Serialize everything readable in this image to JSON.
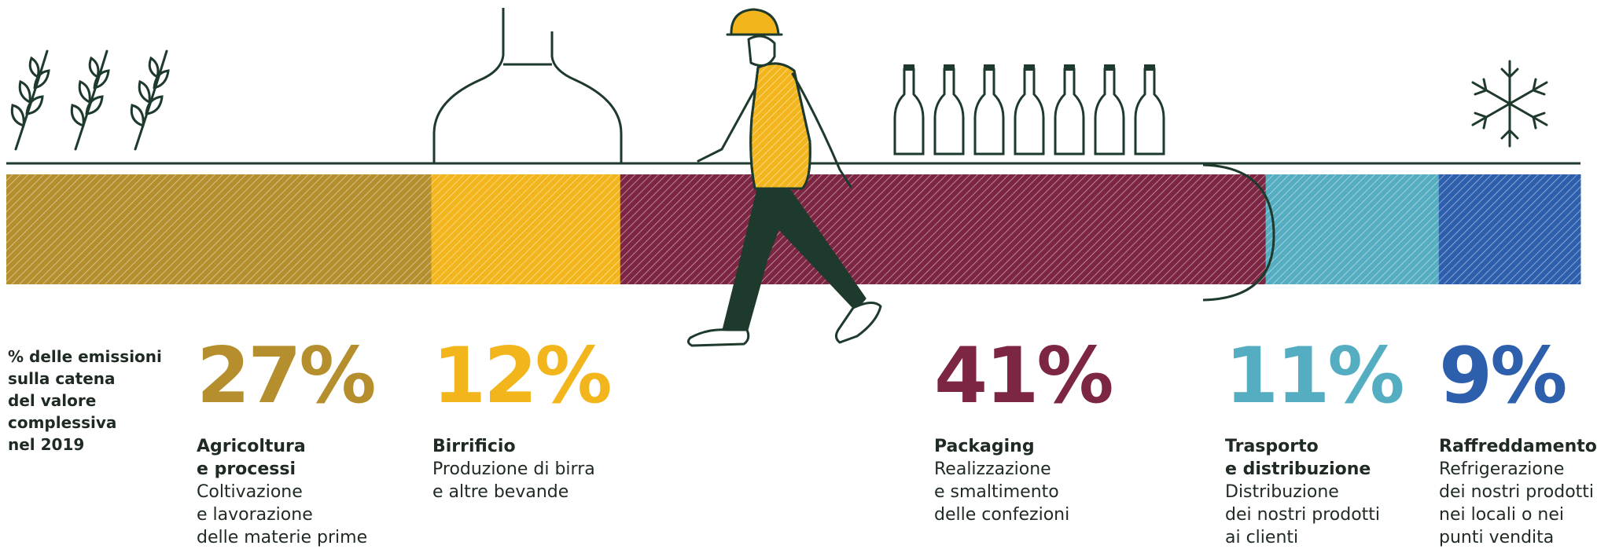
{
  "intro": "% delle emissioni\nsulla catena\ndel valore\ncomplessiva\nnel 2019",
  "colors": {
    "agricoltura": "#b58f2e",
    "birrificio": "#f3b51c",
    "packaging": "#7d2643",
    "trasporto": "#55adc1",
    "raffreddamento": "#2d5fad",
    "line": "#1e3a2c"
  },
  "icons": [
    "wheat-icon",
    "brewing-kettle-icon",
    "worker-icon",
    "bottle-icon",
    "snowflake-icon"
  ],
  "chart_data": {
    "type": "bar",
    "orientation": "horizontal-stacked",
    "unit": "%",
    "categories": [
      "Agricoltura e processi",
      "Birrificio",
      "Packaging",
      "Trasporto e distribuzione",
      "Raffreddamento"
    ],
    "values": [
      27,
      12,
      41,
      11,
      9
    ],
    "labels": [
      "27%",
      "12%",
      "41%",
      "11%",
      "9%"
    ]
  },
  "stats": [
    {
      "pct": "27%",
      "title": "Agricoltura\ne processi",
      "desc": "Coltivazione\ne lavorazione\ndelle materie prime"
    },
    {
      "pct": "12%",
      "title": "Birrificio",
      "desc": "Produzione di birra\ne altre bevande"
    },
    {
      "pct": "41%",
      "title": "Packaging",
      "desc": "Realizzazione\ne smaltimento\ndelle confezioni"
    },
    {
      "pct": "11%",
      "title": "Trasporto\ne distribuzione",
      "desc": "Distribuzione\ndei nostri prodotti\nai clienti"
    },
    {
      "pct": "9%",
      "title": "Raffreddamento",
      "desc": "Refrigerazione\ndei nostri prodotti\nnei locali o nei\npunti vendita"
    }
  ]
}
